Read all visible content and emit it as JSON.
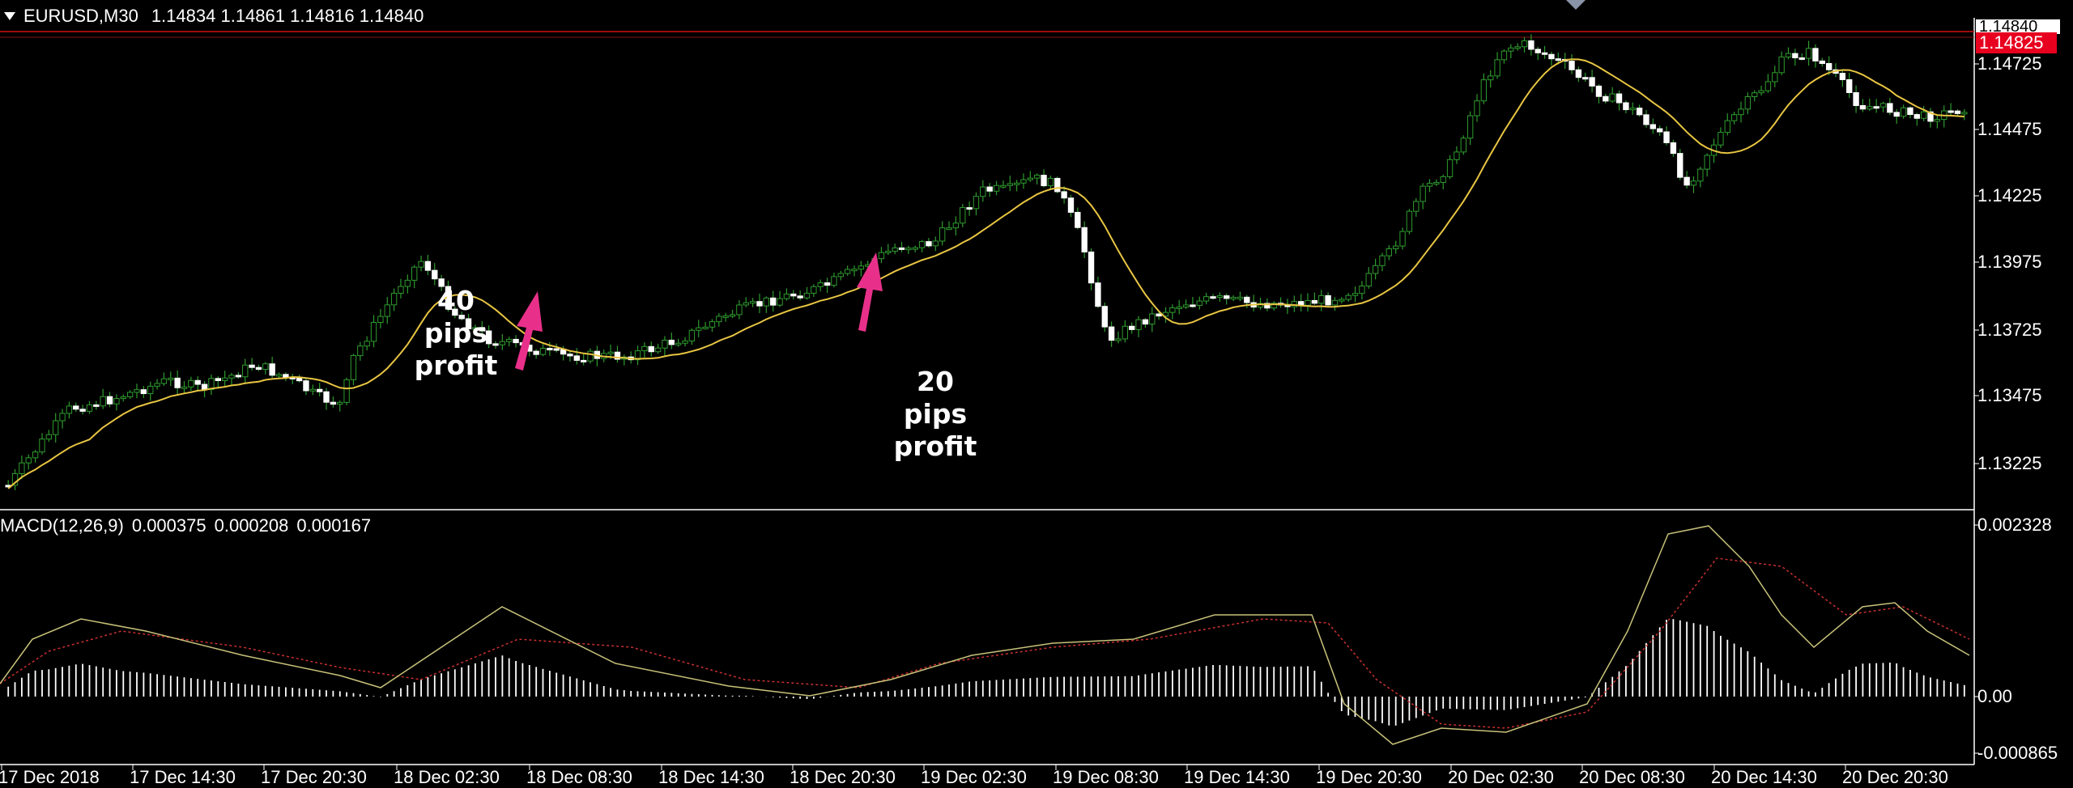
{
  "header": {
    "symbol": "EURUSD,M30",
    "open": "1.14834",
    "high": "1.14861",
    "low": "1.14816",
    "close": "1.14840"
  },
  "price_axis": {
    "labels": [
      "1.14725",
      "1.14475",
      "1.14225",
      "1.13975",
      "1.13725",
      "1.13475",
      "1.13225"
    ],
    "current_bid": "1.14825",
    "current_top": "1.14840"
  },
  "macd": {
    "label": "MACD(12,26,9)",
    "v1": "0.000375",
    "v2": "0.000208",
    "v3": "0.000167",
    "axis_labels": [
      "0.002328",
      "0.00",
      "-0.000865"
    ]
  },
  "time_axis": {
    "labels": [
      "17 Dec 2018",
      "17 Dec 14:30",
      "17 Dec 20:30",
      "18 Dec 02:30",
      "18 Dec 08:30",
      "18 Dec 14:30",
      "18 Dec 20:30",
      "19 Dec 02:30",
      "19 Dec 08:30",
      "19 Dec 14:30",
      "19 Dec 20:30",
      "20 Dec 02:30",
      "20 Dec 08:30",
      "20 Dec 14:30",
      "20 Dec 20:30"
    ]
  },
  "annotations": [
    {
      "line1": "40 pips",
      "line2": "profit"
    },
    {
      "line1": "20 pips",
      "line2": "profit"
    }
  ],
  "colors": {
    "background": "#000000",
    "bull_candle": "#ffffff",
    "bear_candle": "#ffffff",
    "wick": "#2e9b2e",
    "ma_line": "#e8c542",
    "macd_signal": "#c83030",
    "macd_line": "#c8c27a",
    "arrow": "#e8308a",
    "price_line": "#d01010",
    "grid": "#ffffff"
  },
  "icons": {
    "dropdown": "triangle-down-icon",
    "arrow": "arrow-up-icon"
  }
}
